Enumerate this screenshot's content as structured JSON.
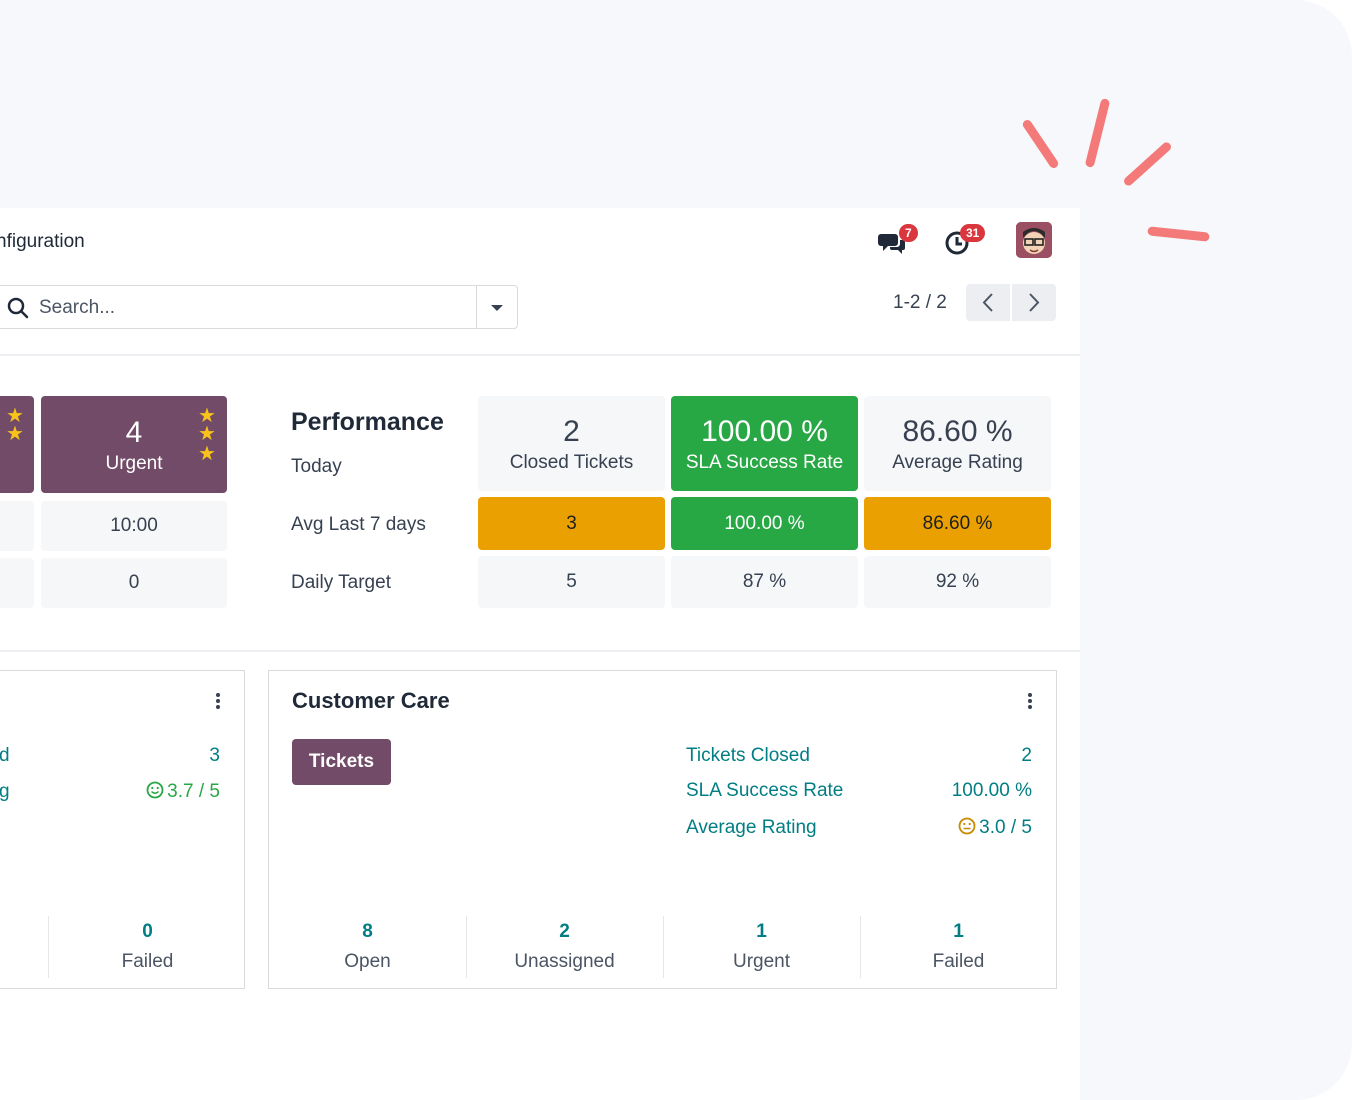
{
  "nav": {
    "menu_partial": "nfiguration"
  },
  "systray": {
    "messages_count": "7",
    "activities_count": "31"
  },
  "search": {
    "placeholder": "Search..."
  },
  "pager": {
    "value": "1-2 / 2"
  },
  "dashboard": {
    "urgent_tile": {
      "value": "4",
      "label": "Urgent"
    },
    "urgent_avg": "10:00",
    "urgent_target": "0",
    "performance_title": "Performance",
    "row_labels": {
      "today": "Today",
      "avg": "Avg Last 7 days",
      "target": "Daily Target"
    },
    "closed": {
      "today": "2",
      "label": "Closed Tickets",
      "avg": "3",
      "target": "5"
    },
    "sla": {
      "today": "100.00 %",
      "label": "SLA Success Rate",
      "avg": "100.00 %",
      "target": "87 %"
    },
    "rating": {
      "today": "86.60 %",
      "label": "Average Rating",
      "avg": "86.60 %",
      "target": "92 %"
    }
  },
  "left_card": {
    "stat1_label_partial": "d",
    "stat1_value": "3",
    "stat2_label_partial": "g",
    "stat2_value": "3.7 / 5",
    "footer": {
      "value": "0",
      "label": "Failed"
    }
  },
  "customer_care": {
    "title": "Customer Care",
    "tickets_button": "Tickets",
    "stats": [
      {
        "label": "Tickets Closed",
        "value": "2"
      },
      {
        "label": "SLA Success Rate",
        "value": "100.00 %"
      },
      {
        "label": "Average Rating",
        "value": "3.0 / 5"
      }
    ],
    "footer": [
      {
        "value": "8",
        "label": "Open"
      },
      {
        "value": "2",
        "label": "Unassigned"
      },
      {
        "value": "1",
        "label": "Urgent"
      },
      {
        "value": "1",
        "label": "Failed"
      }
    ]
  },
  "colors": {
    "primary": "#714b67",
    "success": "#28a745",
    "warning": "#e9a000",
    "teal": "#017e84",
    "accent_spark": "#f47a7a"
  }
}
